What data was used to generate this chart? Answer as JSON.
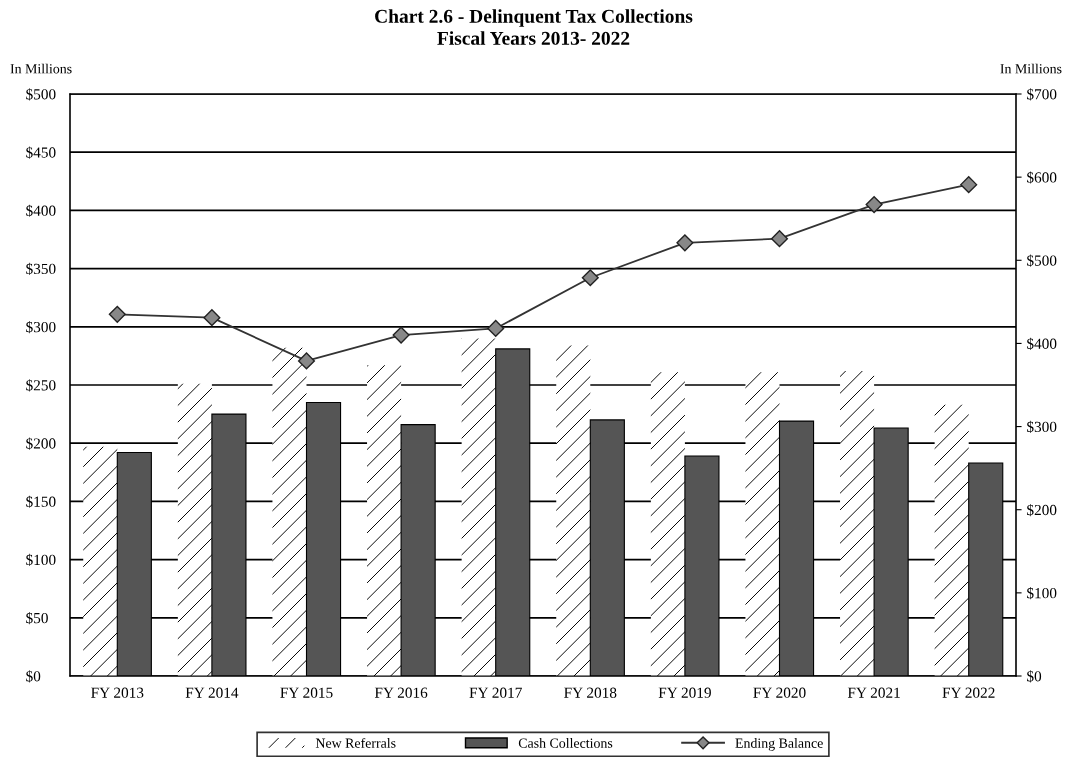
{
  "chart_data": {
    "type": "bar",
    "title": "Chart 2.6 - Delinquent Tax Collections",
    "subtitle": "Fiscal Years 2013- 2022",
    "ylabel": "In Millions",
    "y2label": "In Millions",
    "categories": [
      "FY 2013",
      "FY 2014",
      "FY 2015",
      "FY 2016",
      "FY 2017",
      "FY 2018",
      "FY 2019",
      "FY 2020",
      "FY 2021",
      "FY 2022"
    ],
    "series": [
      {
        "name": "New Referrals",
        "color": "#ffffff",
        "values": [
          197,
          251,
          282,
          267,
          290,
          284,
          261,
          261,
          262,
          233
        ]
      },
      {
        "name": "Cash Collections",
        "color": "#555555",
        "values": [
          192,
          225,
          235,
          216,
          281,
          220,
          189,
          219,
          213,
          183
        ]
      },
      {
        "name": "Ending Balance",
        "type": "line",
        "axis": "y2",
        "color": "#333333",
        "marker": "diamond",
        "values": [
          435,
          431,
          379,
          410,
          418,
          479,
          521,
          526,
          567,
          591
        ]
      }
    ],
    "ylim": [
      0,
      500
    ],
    "yticks": [
      {
        "value": 0,
        "label": "$0"
      },
      {
        "value": 50,
        "label": "$50"
      },
      {
        "value": 100,
        "label": "$100"
      },
      {
        "value": 150,
        "label": "$150"
      },
      {
        "value": 200,
        "label": "$200"
      },
      {
        "value": 250,
        "label": "$250"
      },
      {
        "value": 300,
        "label": "$300"
      },
      {
        "value": 350,
        "label": "$350"
      },
      {
        "value": 400,
        "label": "$400"
      },
      {
        "value": 450,
        "label": "$450"
      },
      {
        "value": 500,
        "label": "$500"
      }
    ],
    "y2lim": [
      0,
      700
    ],
    "y2ticks": [
      {
        "value": 0,
        "label": "$0"
      },
      {
        "value": 100,
        "label": "$100"
      },
      {
        "value": 200,
        "label": "$200"
      },
      {
        "value": 300,
        "label": "$300"
      },
      {
        "value": 400,
        "label": "$400"
      },
      {
        "value": 500,
        "label": "$500"
      },
      {
        "value": 600,
        "label": "$600"
      },
      {
        "value": 700,
        "label": "$700"
      }
    ],
    "grid": "y",
    "legend": "bottom"
  }
}
